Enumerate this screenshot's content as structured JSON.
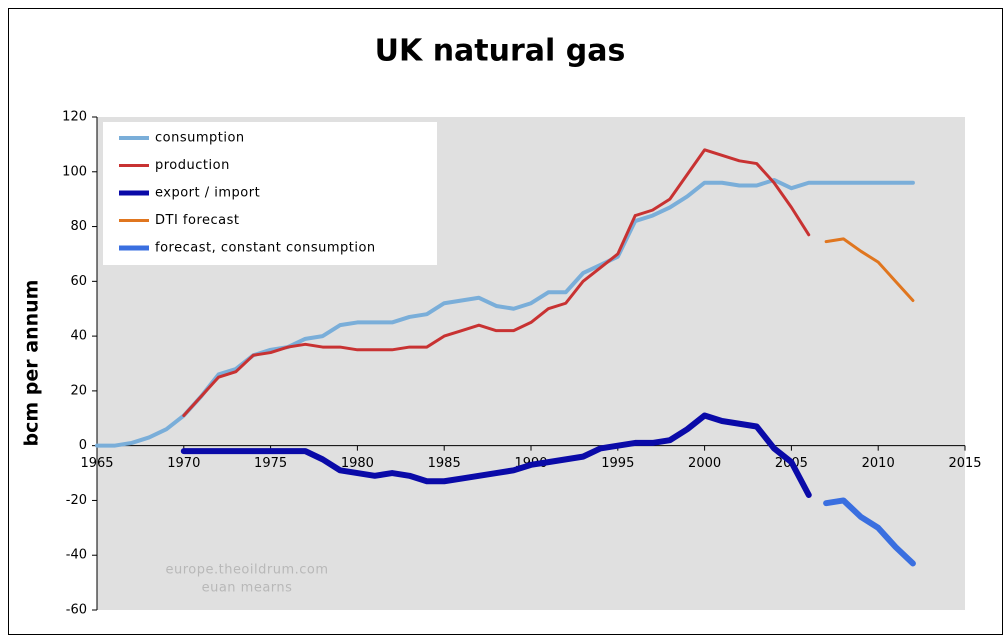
{
  "chart_data": {
    "type": "line",
    "title": "UK natural gas",
    "ylabel": "bcm per annum",
    "annotations": [
      "europe.theoildrum.com",
      "euan mearns"
    ],
    "xlim": [
      1965,
      2015
    ],
    "xticks": [
      1965,
      1970,
      1975,
      1980,
      1985,
      1990,
      1995,
      2000,
      2005,
      2010,
      2015
    ],
    "ylim": [
      -60,
      120
    ],
    "yticks": [
      -60,
      -40,
      -20,
      0,
      20,
      40,
      60,
      80,
      100,
      120
    ],
    "grid": false,
    "legend": "upper left",
    "series": [
      {
        "name": "consumption",
        "color": "#7aaed9",
        "width": 4,
        "x": [
          1965,
          1966,
          1967,
          1968,
          1969,
          1970,
          1971,
          1972,
          1973,
          1974,
          1975,
          1976,
          1977,
          1978,
          1979,
          1980,
          1981,
          1982,
          1983,
          1984,
          1985,
          1986,
          1987,
          1988,
          1989,
          1990,
          1991,
          1992,
          1993,
          1994,
          1995,
          1996,
          1997,
          1998,
          1999,
          2000,
          2001,
          2002,
          2003,
          2004,
          2005,
          2006,
          2007,
          2008,
          2009,
          2010,
          2011,
          2012
        ],
        "values": [
          0,
          0,
          1,
          3,
          6,
          11,
          18,
          26,
          28,
          33,
          35,
          36,
          39,
          40,
          44,
          45,
          45,
          45,
          47,
          48,
          52,
          53,
          54,
          51,
          50,
          52,
          56,
          56,
          63,
          66,
          69,
          82,
          84,
          87,
          91,
          96,
          96,
          95,
          95,
          97,
          94,
          96,
          96,
          96,
          96,
          96,
          96,
          96
        ]
      },
      {
        "name": "production",
        "color": "#c83232",
        "width": 3,
        "x": [
          1970,
          1971,
          1972,
          1973,
          1974,
          1975,
          1976,
          1977,
          1978,
          1979,
          1980,
          1981,
          1982,
          1983,
          1984,
          1985,
          1986,
          1987,
          1988,
          1989,
          1990,
          1991,
          1992,
          1993,
          1994,
          1995,
          1996,
          1997,
          1998,
          1999,
          2000,
          2001,
          2002,
          2003,
          2004,
          2005,
          2006
        ],
        "values": [
          11,
          18,
          25,
          27,
          33,
          34,
          36,
          37,
          36,
          36,
          35,
          35,
          35,
          36,
          36,
          40,
          42,
          44,
          42,
          42,
          45,
          50,
          52,
          60,
          65,
          70,
          84,
          86,
          90,
          99,
          108,
          106,
          104,
          103,
          96,
          87,
          77
        ]
      },
      {
        "name": "export / import",
        "color": "#0a0aa8",
        "width": 6,
        "x": [
          1970,
          1971,
          1972,
          1973,
          1974,
          1975,
          1976,
          1977,
          1978,
          1979,
          1980,
          1981,
          1982,
          1983,
          1984,
          1985,
          1986,
          1987,
          1988,
          1989,
          1990,
          1991,
          1992,
          1993,
          1994,
          1995,
          1996,
          1997,
          1998,
          1999,
          2000,
          2001,
          2002,
          2003,
          2004,
          2005,
          2006
        ],
        "values": [
          -2,
          -2,
          -2,
          -2,
          -2,
          -2,
          -2,
          -2,
          -5,
          -9,
          -10,
          -11,
          -10,
          -11,
          -13,
          -13,
          -12,
          -11,
          -10,
          -9,
          -7,
          -6,
          -5,
          -4,
          -1,
          0,
          1,
          1,
          2,
          6,
          11,
          9,
          8,
          7,
          -1,
          -6,
          -18
        ]
      },
      {
        "name": "DTI forecast",
        "color": "#e0761f",
        "width": 3,
        "x": [
          2007,
          2008,
          2009,
          2010,
          2011,
          2012
        ],
        "values": [
          74.5,
          75.5,
          71,
          67,
          60,
          53
        ]
      },
      {
        "name": "forecast, constant consumption",
        "color": "#3a6fe0",
        "width": 6,
        "x": [
          2007,
          2008,
          2009,
          2010,
          2011,
          2012
        ],
        "values": [
          -21,
          -20,
          -26,
          -30,
          -37,
          -43
        ]
      }
    ]
  }
}
